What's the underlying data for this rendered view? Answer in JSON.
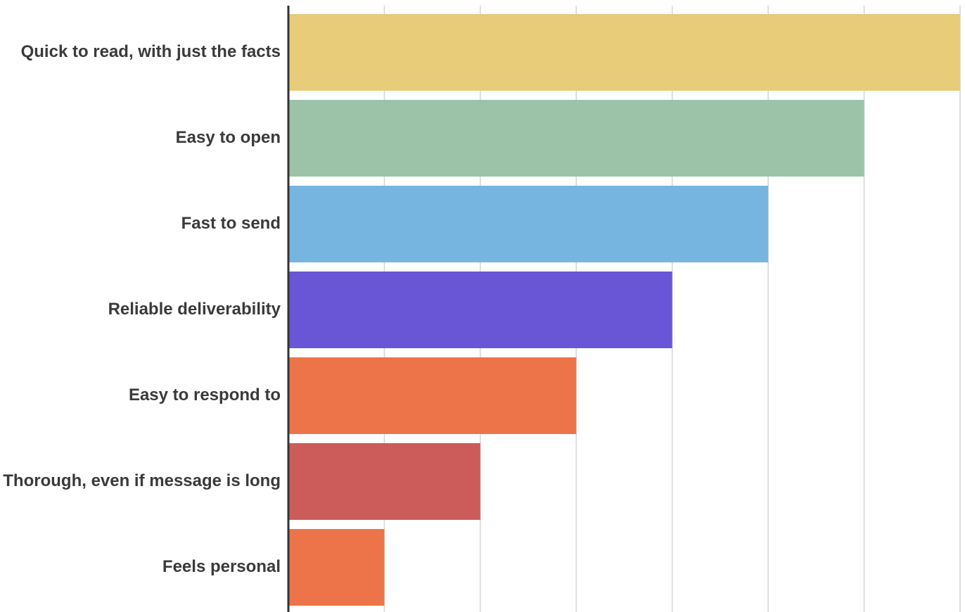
{
  "chart_data": {
    "type": "bar",
    "orientation": "horizontal",
    "title": "",
    "xlabel": "",
    "ylabel": "",
    "categories": [
      "Quick to read, with just the facts",
      "Easy to open",
      "Fast to send",
      "Reliable deliverability",
      "Easy to respond to",
      "Thorough, even if message is long",
      "Feels personal"
    ],
    "values": [
      7,
      6,
      5,
      4,
      3,
      2,
      1
    ],
    "colors": [
      "#e8cc79",
      "#9cc3a8",
      "#77b5e1",
      "#6856d6",
      "#ed7449",
      "#cc5c5a",
      "#ed7449"
    ],
    "xlim": [
      0,
      7
    ],
    "grid": true,
    "legend": "none"
  }
}
